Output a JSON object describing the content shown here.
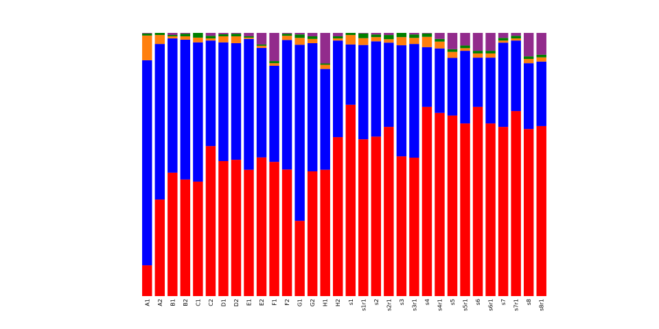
{
  "chart_data": {
    "type": "bar",
    "stacked": true,
    "normalized": true,
    "title": "",
    "xlabel": "",
    "ylabel": "",
    "ylim": [
      0,
      1
    ],
    "grid": false,
    "legend": "none",
    "axes_visible": false,
    "categories": [
      "A1",
      "A2",
      "B1",
      "B2",
      "C1",
      "C2",
      "D1",
      "D2",
      "E1",
      "E2",
      "F1",
      "F2",
      "G1",
      "G2",
      "H1",
      "H2",
      "s1",
      "s1r1",
      "s2",
      "s2r1",
      "s3",
      "s3r1",
      "s4",
      "s4r1",
      "s5",
      "s5r1",
      "s6",
      "s6r1",
      "s7",
      "s7r1",
      "s8",
      "s8r1"
    ],
    "series": [
      {
        "color": "#ff0000",
        "values": [
          0.117,
          0.367,
          0.469,
          0.443,
          0.435,
          0.57,
          0.513,
          0.518,
          0.48,
          0.527,
          0.51,
          0.481,
          0.286,
          0.474,
          0.48,
          0.604,
          0.727,
          0.596,
          0.606,
          0.643,
          0.531,
          0.526,
          0.719,
          0.696,
          0.686,
          0.656,
          0.719,
          0.656,
          0.643,
          0.703,
          0.635,
          0.646
        ]
      },
      {
        "color": "#0000ff",
        "values": [
          0.779,
          0.591,
          0.51,
          0.531,
          0.529,
          0.401,
          0.451,
          0.443,
          0.497,
          0.416,
          0.365,
          0.492,
          0.669,
          0.487,
          0.383,
          0.367,
          0.229,
          0.358,
          0.362,
          0.32,
          0.422,
          0.432,
          0.227,
          0.245,
          0.219,
          0.276,
          0.187,
          0.25,
          0.32,
          0.268,
          0.25,
          0.245
        ]
      },
      {
        "color": "#ff7f0e",
        "values": [
          0.094,
          0.034,
          0.008,
          0.013,
          0.018,
          0.008,
          0.023,
          0.026,
          0.005,
          0.008,
          0.01,
          0.016,
          0.026,
          0.016,
          0.016,
          0.008,
          0.036,
          0.026,
          0.016,
          0.013,
          0.031,
          0.023,
          0.039,
          0.026,
          0.023,
          0.01,
          0.016,
          0.016,
          0.008,
          0.008,
          0.016,
          0.016
        ]
      },
      {
        "color": "#008000",
        "values": [
          0.008,
          0.008,
          0.005,
          0.01,
          0.018,
          0.01,
          0.008,
          0.01,
          0.005,
          0.005,
          0.008,
          0.008,
          0.013,
          0.01,
          0.005,
          0.008,
          0.008,
          0.018,
          0.01,
          0.016,
          0.016,
          0.013,
          0.013,
          0.01,
          0.01,
          0.01,
          0.01,
          0.01,
          0.01,
          0.01,
          0.01,
          0.01
        ]
      },
      {
        "color": "#922b8c",
        "values": [
          0.002,
          0.0,
          0.008,
          0.003,
          0.0,
          0.011,
          0.005,
          0.003,
          0.013,
          0.044,
          0.107,
          0.003,
          0.006,
          0.013,
          0.116,
          0.013,
          0.0,
          0.002,
          0.006,
          0.008,
          0.0,
          0.006,
          0.002,
          0.023,
          0.062,
          0.048,
          0.068,
          0.068,
          0.019,
          0.011,
          0.089,
          0.083
        ]
      }
    ]
  }
}
